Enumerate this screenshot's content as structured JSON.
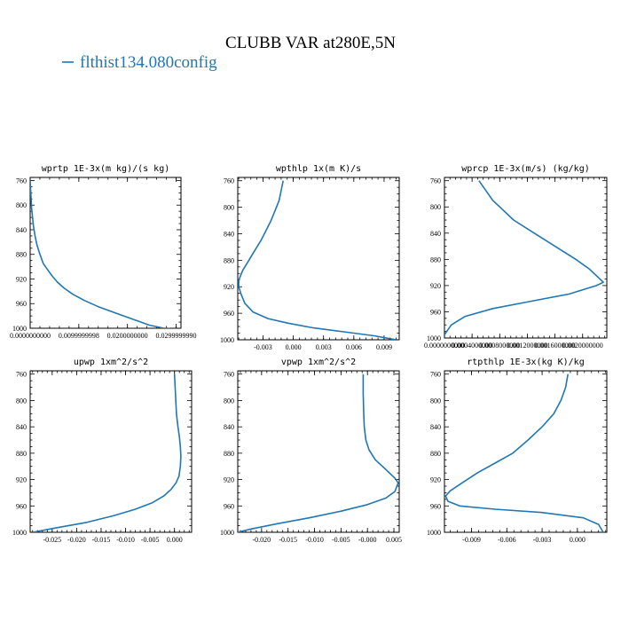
{
  "page": {
    "title": "CLUBB VAR at280E,5N",
    "legend": {
      "label": "flthist134.080config",
      "color": "#1f77b4"
    }
  },
  "chart_data": [
    {
      "type": "line",
      "title": "wprtp  1E-3x(m kg)/(s kg)",
      "ylim": [
        1000,
        755
      ],
      "yticks": [
        760,
        800,
        840,
        880,
        920,
        960,
        1000
      ],
      "yticklabels": [
        "760",
        "800",
        "840",
        "880",
        "920",
        "960",
        "1000"
      ],
      "xlim": [
        0.0,
        0.031
      ],
      "xticks": [
        0.0,
        0.0099999998,
        0.02,
        0.029999999
      ],
      "xticklabels": [
        "0.0000000000",
        "0.0099999998",
        "0.0200000000",
        "0.0299999990"
      ],
      "series": [
        {
          "x": [
            0.0,
            0.0001,
            0.0002,
            0.0003,
            0.0005,
            0.0007,
            0.001,
            0.0014,
            0.002,
            0.0027,
            0.0036,
            0.0045,
            0.0056,
            0.007,
            0.0088,
            0.0112,
            0.014,
            0.0175,
            0.021,
            0.0245,
            0.0275,
            0.0283,
            0.0295
          ],
          "y": [
            760,
            775,
            790,
            805,
            820,
            835,
            850,
            865,
            880,
            895,
            905,
            915,
            925,
            935,
            945,
            955,
            965,
            975,
            985,
            995,
            1000,
            1000,
            1003
          ]
        }
      ]
    },
    {
      "type": "line",
      "title": "wpthlp  1x(m K)/s",
      "ylim": [
        1000,
        755
      ],
      "yticks": [
        760,
        800,
        840,
        880,
        920,
        960,
        1000
      ],
      "yticklabels": [
        "760",
        "800",
        "840",
        "880",
        "920",
        "960",
        "1000"
      ],
      "xlim": [
        -0.0055,
        0.0105
      ],
      "xticks": [
        -0.003,
        0.0,
        0.003,
        0.006,
        0.009
      ],
      "xticklabels": [
        "-0.003",
        "0.000",
        "0.003",
        "0.006",
        "0.009"
      ],
      "series": [
        {
          "x": [
            -0.001,
            -0.0012,
            -0.0014,
            -0.0018,
            -0.0022,
            -0.0027,
            -0.0032,
            -0.0038,
            -0.0044,
            -0.005,
            -0.0054,
            -0.0054,
            -0.0052,
            -0.0048,
            -0.004,
            -0.0025,
            -0.0005,
            0.002,
            0.005,
            0.008,
            0.0102
          ],
          "y": [
            760,
            775,
            790,
            805,
            820,
            835,
            850,
            865,
            880,
            895,
            910,
            920,
            930,
            945,
            958,
            968,
            975,
            982,
            988,
            994,
            1000
          ]
        }
      ]
    },
    {
      "type": "line",
      "title": "wprcp  1E-3x(m/s) (kg/kg)",
      "ylim": [
        1000,
        755
      ],
      "yticks": [
        760,
        800,
        840,
        880,
        920,
        960,
        1000
      ],
      "yticklabels": [
        "760",
        "800",
        "840",
        "880",
        "920",
        "960",
        "1000"
      ],
      "xlim": [
        0.0,
        0.00235
      ],
      "xticks": [
        0.0,
        0.0004,
        0.0008,
        0.0012,
        0.0016,
        0.002
      ],
      "xticklabels": [
        "0.0000000000",
        "0.0004000000",
        "0.0008000000",
        "0.0012000000",
        "0.0016000000",
        "0.0020000000"
      ],
      "series": [
        {
          "x": [
            0.0005,
            0.0006,
            0.0007,
            0.0008,
            0.001,
            0.0013,
            0.0016,
            0.0019,
            0.0021,
            0.0023,
            0.0022,
            0.0018,
            0.0012,
            0.0007,
            0.0003,
            0.0001,
            0.0
          ],
          "y": [
            760,
            775,
            790,
            800,
            820,
            840,
            860,
            880,
            895,
            915,
            920,
            933,
            945,
            955,
            967,
            980,
            995
          ]
        }
      ]
    },
    {
      "type": "line",
      "title": "upwp  1xm^2/s^2",
      "ylim": [
        1000,
        755
      ],
      "yticks": [
        760,
        800,
        840,
        880,
        920,
        960,
        1000
      ],
      "yticklabels": [
        "760",
        "800",
        "840",
        "880",
        "920",
        "960",
        "1000"
      ],
      "xlim": [
        -0.0295,
        0.0035
      ],
      "xticks": [
        -0.025,
        -0.02,
        -0.015,
        -0.01,
        -0.005,
        0.0
      ],
      "xticklabels": [
        "-0.025",
        "-0.020",
        "-0.015",
        "-0.010",
        "-0.005",
        "0.000"
      ],
      "series": [
        {
          "x": [
            0.0,
            0.0002,
            0.0004,
            0.0007,
            0.001,
            0.0012,
            0.0013,
            0.0012,
            0.0009,
            0.0003,
            -0.0007,
            -0.0022,
            -0.0045,
            -0.008,
            -0.0125,
            -0.018,
            -0.024,
            -0.029
          ],
          "y": [
            760,
            790,
            820,
            840,
            855,
            870,
            885,
            900,
            915,
            925,
            935,
            945,
            955,
            965,
            975,
            985,
            993,
            1000
          ]
        }
      ]
    },
    {
      "type": "line",
      "title": "vpwp  1xm^2/s^2",
      "ylim": [
        1000,
        755
      ],
      "yticks": [
        760,
        800,
        840,
        880,
        920,
        960,
        1000
      ],
      "yticklabels": [
        "760",
        "800",
        "840",
        "880",
        "920",
        "960",
        "1000"
      ],
      "xlim": [
        -0.0245,
        0.006
      ],
      "xticks": [
        -0.02,
        -0.015,
        -0.01,
        -0.005,
        0.0,
        0.005
      ],
      "xticklabels": [
        "-0.020",
        "-0.015",
        "-0.010",
        "-0.005",
        "-0.000",
        "0.005"
      ],
      "series": [
        {
          "x": [
            -0.0008,
            -0.0008,
            -0.0007,
            -0.0006,
            -0.0003,
            0.0003,
            0.0015,
            0.0035,
            0.0052,
            0.0058,
            0.0052,
            0.0035,
            0.0,
            -0.005,
            -0.011,
            -0.017,
            -0.022,
            -0.0245
          ],
          "y": [
            760,
            790,
            820,
            840,
            860,
            875,
            890,
            905,
            918,
            925,
            938,
            948,
            958,
            968,
            978,
            987,
            995,
            1000
          ]
        }
      ]
    },
    {
      "type": "line",
      "title": "rtpthlp  1E-3x(kg K)/kg",
      "ylim": [
        1000,
        755
      ],
      "yticks": [
        760,
        800,
        840,
        880,
        920,
        960,
        1000
      ],
      "yticklabels": [
        "760",
        "800",
        "840",
        "880",
        "920",
        "960",
        "1000"
      ],
      "xlim": [
        -0.0113,
        0.0025
      ],
      "xticks": [
        -0.009,
        -0.006,
        -0.003,
        0.0
      ],
      "xticklabels": [
        "-0.009",
        "-0.006",
        "-0.003",
        "0.000"
      ],
      "series": [
        {
          "x": [
            -0.0008,
            -0.001,
            -0.0014,
            -0.002,
            -0.003,
            -0.0042,
            -0.0055,
            -0.007,
            -0.0085,
            -0.0098,
            -0.0108,
            -0.0112,
            -0.011,
            -0.01,
            -0.007,
            -0.003,
            0.0005,
            0.0018,
            0.0022
          ],
          "y": [
            760,
            780,
            800,
            820,
            840,
            860,
            880,
            895,
            910,
            925,
            937,
            945,
            953,
            960,
            965,
            970,
            978,
            988,
            1000
          ]
        }
      ]
    }
  ]
}
